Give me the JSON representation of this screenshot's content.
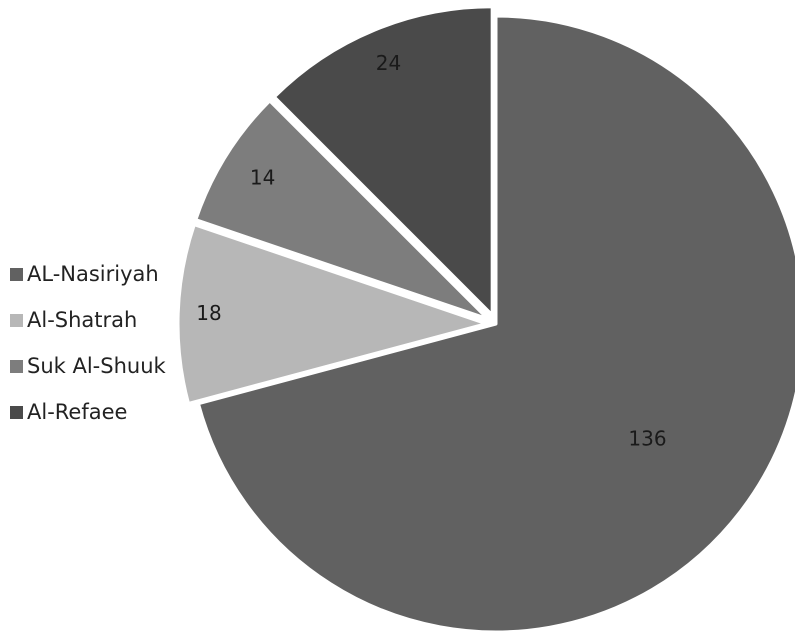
{
  "chart_data": {
    "type": "pie",
    "title": "",
    "legend_position": "left",
    "exploded": true,
    "categories": [
      "AL-Nasiriyah",
      "Al-Shatrah",
      "Suk Al-Shuuk",
      "Al-Refaee"
    ],
    "values": [
      136,
      18,
      14,
      24
    ],
    "value_labels": [
      "136",
      "18",
      "14",
      "24"
    ],
    "colors": [
      "#616161",
      "#b7b7b7",
      "#7d7d7d",
      "#4a4a4a"
    ]
  }
}
